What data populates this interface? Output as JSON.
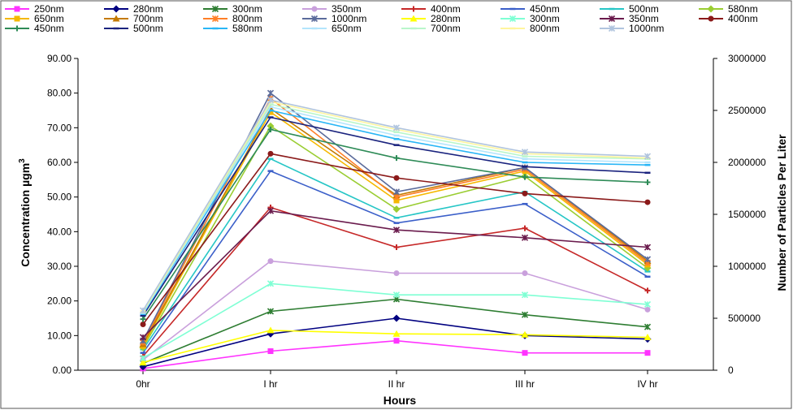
{
  "chart_data": {
    "type": "line",
    "categories": [
      "0hr",
      "I hr",
      "II hr",
      "III hr",
      "IV hr"
    ],
    "xlabel": "Hours",
    "ylabel": "Concentration µgm",
    "ylabel_sup": "3",
    "y2label": "Number of Particles Per Liter",
    "ylim": [
      0,
      90
    ],
    "y2lim": [
      0,
      3000000
    ],
    "yticks": [
      "0.00",
      "10.00",
      "20.00",
      "30.00",
      "40.00",
      "50.00",
      "60.00",
      "70.00",
      "80.00",
      "90.00"
    ],
    "y2ticks": [
      "0",
      "500000",
      "1000000",
      "1500000",
      "2000000",
      "2500000",
      "3000000"
    ],
    "legend_placement": "top",
    "grid": false,
    "series": [
      {
        "name": "250nm",
        "axis": "left",
        "color": "#ff33ff",
        "marker": "square",
        "values": [
          0.5,
          5.5,
          8.5,
          5.0,
          5.0
        ]
      },
      {
        "name": "280nm",
        "axis": "left",
        "color": "#000080",
        "marker": "diamond",
        "values": [
          1.0,
          10.5,
          15.0,
          10.0,
          9.0
        ]
      },
      {
        "name": "300nm",
        "axis": "left",
        "color": "#2e7d32",
        "marker": "star",
        "values": [
          2.0,
          17.0,
          20.5,
          16.0,
          12.5
        ]
      },
      {
        "name": "350nm",
        "axis": "left",
        "color": "#c9a0dc",
        "marker": "circle",
        "values": [
          3.0,
          31.5,
          28.0,
          28.0,
          17.5
        ]
      },
      {
        "name": "400nm",
        "axis": "left",
        "color": "#c62828",
        "marker": "plus",
        "values": [
          4.0,
          47.0,
          35.5,
          41.0,
          23.0
        ]
      },
      {
        "name": "450nm",
        "axis": "left",
        "color": "#3b5fc9",
        "marker": "dash",
        "values": [
          5.0,
          57.5,
          42.5,
          48.0,
          27.0
        ]
      },
      {
        "name": "500nm",
        "axis": "left",
        "color": "#26c6c6",
        "marker": "dash",
        "values": [
          6.0,
          61.0,
          44.0,
          51.5,
          28.5
        ]
      },
      {
        "name": "580nm",
        "axis": "left",
        "color": "#9acd32",
        "marker": "diamond",
        "values": [
          6.5,
          70.5,
          46.5,
          56.0,
          29.5
        ]
      },
      {
        "name": "650nm",
        "axis": "left",
        "color": "#f5b800",
        "marker": "square",
        "values": [
          7.0,
          74.5,
          49.0,
          57.5,
          30.5
        ]
      },
      {
        "name": "700nm",
        "axis": "left",
        "color": "#c47a00",
        "marker": "triangle",
        "values": [
          7.5,
          75.5,
          50.5,
          58.5,
          31.5
        ]
      },
      {
        "name": "800nm",
        "axis": "left",
        "color": "#ff7f27",
        "marker": "star",
        "values": [
          8.0,
          78.5,
          50.0,
          58.0,
          31.0
        ]
      },
      {
        "name": "1000nm",
        "axis": "left",
        "color": "#5b6b9b",
        "marker": "star",
        "values": [
          8.5,
          80.0,
          51.5,
          58.5,
          32.0
        ]
      },
      {
        "name": "280nm",
        "axis": "right",
        "color": "#ffff00",
        "marker": "triangle",
        "values": [
          75000,
          383333,
          350000,
          341667,
          316667
        ]
      },
      {
        "name": "300nm",
        "axis": "right",
        "color": "#7fffd4",
        "marker": "star",
        "values": [
          116667,
          833333,
          725000,
          725000,
          633333
        ]
      },
      {
        "name": "350nm",
        "axis": "right",
        "color": "#6a1b4d",
        "marker": "star",
        "values": [
          316667,
          1533333,
          1350000,
          1275000,
          1183333
        ]
      },
      {
        "name": "400nm",
        "axis": "right",
        "color": "#8b1a1a",
        "marker": "circle",
        "values": [
          441667,
          2083333,
          1850000,
          1700000,
          1616667
        ]
      },
      {
        "name": "450nm",
        "axis": "right",
        "color": "#2e8b57",
        "marker": "plus",
        "values": [
          491667,
          2316667,
          2041667,
          1858333,
          1808333
        ]
      },
      {
        "name": "500nm",
        "axis": "right",
        "color": "#1a237e",
        "marker": "dash",
        "values": [
          525000,
          2433333,
          2166667,
          1958333,
          1900000
        ]
      },
      {
        "name": "580nm",
        "axis": "right",
        "color": "#29b6f6",
        "marker": "dash",
        "values": [
          541667,
          2500000,
          2225000,
          2000000,
          1975000
        ]
      },
      {
        "name": "650nm",
        "axis": "right",
        "color": "#b3e5fc",
        "marker": "dash",
        "values": [
          550000,
          2533333,
          2258333,
          2033333,
          2000000
        ]
      },
      {
        "name": "700nm",
        "axis": "right",
        "color": "#b9f6ca",
        "marker": "dash",
        "values": [
          558333,
          2558333,
          2291667,
          2058333,
          2033333
        ]
      },
      {
        "name": "800nm",
        "axis": "right",
        "color": "#fff59d",
        "marker": "dash",
        "values": [
          566667,
          2583333,
          2316667,
          2083333,
          2041667
        ]
      },
      {
        "name": "1000nm",
        "axis": "right",
        "color": "#b0c4de",
        "marker": "star",
        "values": [
          575000,
          2600000,
          2333333,
          2100000,
          2058333
        ]
      }
    ]
  }
}
